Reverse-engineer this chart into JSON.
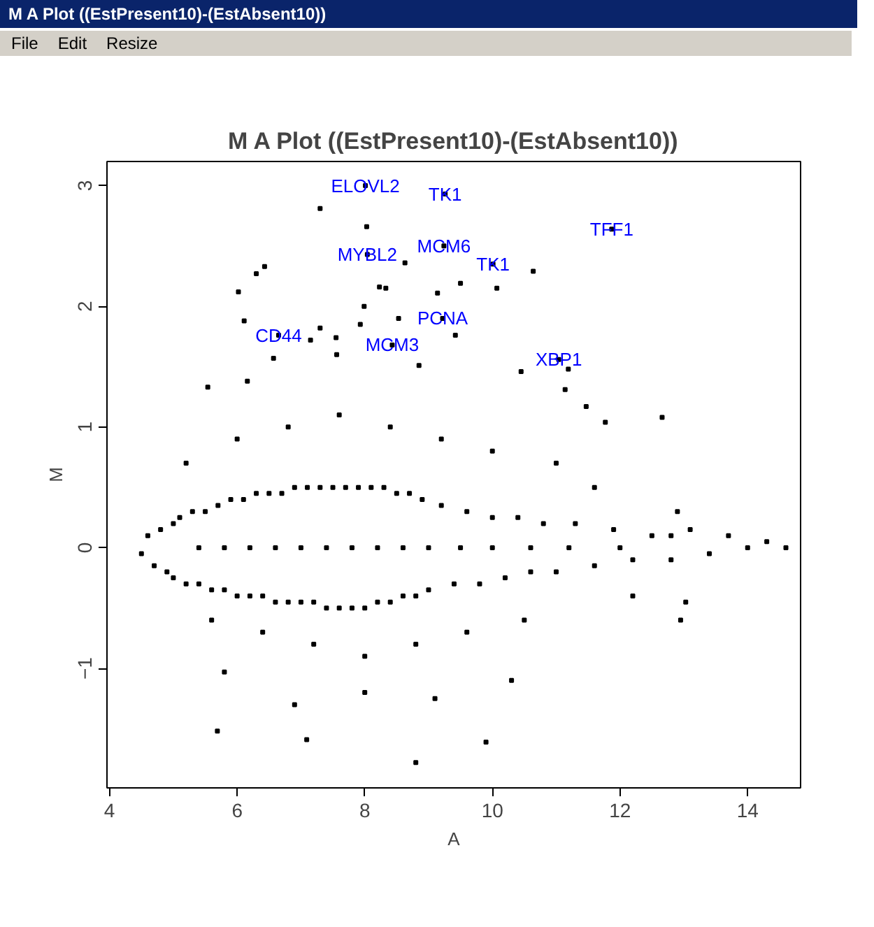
{
  "chart_data": {
    "type": "scatter",
    "title": "M A Plot ((EstPresent10)-(EstAbsent10))",
    "xlabel": "A",
    "ylabel": "M",
    "xlim": [
      3.96,
      14.83
    ],
    "ylim": [
      -1.99,
      3.2
    ],
    "xticks": [
      4,
      6,
      8,
      10,
      12,
      14
    ],
    "yticks": [
      -1,
      0,
      1,
      2,
      3
    ],
    "grid": false,
    "marker": "square",
    "series": [
      {
        "color": "#000000",
        "x": [
          4.5,
          4.6,
          4.7,
          4.8,
          4.9,
          5.0,
          5.0,
          5.1,
          5.2,
          5.3,
          5.4,
          5.5,
          5.6,
          5.7,
          5.8,
          5.9,
          6.0,
          6.1,
          6.2,
          6.3,
          6.4,
          6.5,
          6.6,
          6.7,
          6.8,
          6.9,
          7.0,
          7.1,
          7.2,
          7.3,
          7.4,
          7.5,
          7.6,
          7.7,
          7.8,
          7.9,
          8.0,
          8.1,
          8.2,
          8.3,
          8.4,
          8.5,
          8.6,
          8.7,
          8.8,
          8.9,
          9.0,
          9.2,
          9.4,
          9.6,
          9.8,
          10.0,
          10.2,
          10.4,
          10.6,
          10.8,
          11.0,
          11.3,
          11.6,
          11.9,
          12.2,
          12.5,
          12.8,
          13.1,
          13.4,
          13.7,
          14.0,
          14.3,
          14.6,
          5.2,
          5.6,
          6.0,
          6.4,
          6.8,
          7.2,
          7.6,
          8.0,
          8.4,
          8.8,
          9.2,
          9.6,
          10.0,
          10.5,
          11.0,
          11.6,
          12.2,
          12.9,
          5.4,
          5.8,
          6.2,
          6.6,
          7.0,
          7.4,
          7.8,
          8.2,
          8.6,
          9.0,
          9.5,
          10.0,
          10.6,
          11.2,
          12.0,
          12.8,
          7.3,
          8.03,
          8.63,
          10.64,
          10.07,
          9.5,
          9.14,
          6.43,
          6.3,
          6.02,
          6.11,
          8.23,
          8.33,
          7.99,
          8.53,
          7.93,
          9.42,
          7.3,
          7.15,
          7.55,
          7.56,
          6.57,
          8.85,
          10.45,
          11.19,
          11.14,
          11.47,
          12.66,
          11.77,
          5.54,
          6.16,
          13.03,
          12.95,
          8.8,
          9.9,
          5.69,
          7.09,
          5.8,
          6.9,
          8.0,
          9.1,
          10.3,
          8.01,
          9.26,
          11.87,
          8.04,
          9.24,
          10.01,
          9.22,
          6.65,
          8.43,
          11.04
        ],
        "values": [
          -0.05,
          0.1,
          -0.15,
          0.15,
          -0.2,
          0.2,
          -0.25,
          0.25,
          -0.3,
          0.3,
          -0.3,
          0.3,
          -0.35,
          0.35,
          -0.35,
          0.4,
          -0.4,
          0.4,
          -0.4,
          0.45,
          -0.4,
          0.45,
          -0.45,
          0.45,
          -0.45,
          0.5,
          -0.45,
          0.5,
          -0.45,
          0.5,
          -0.5,
          0.5,
          -0.5,
          0.5,
          -0.5,
          0.5,
          -0.5,
          0.5,
          -0.45,
          0.5,
          -0.45,
          0.45,
          -0.4,
          0.45,
          -0.4,
          0.4,
          -0.35,
          0.35,
          -0.3,
          0.3,
          -0.3,
          0.25,
          -0.25,
          0.25,
          -0.2,
          0.2,
          -0.2,
          0.2,
          -0.15,
          0.15,
          -0.1,
          0.1,
          -0.1,
          0.15,
          -0.05,
          0.1,
          0.0,
          0.05,
          0.0,
          0.7,
          -0.6,
          0.9,
          -0.7,
          1.0,
          -0.8,
          1.1,
          -0.9,
          1.0,
          -0.8,
          0.9,
          -0.7,
          0.8,
          -0.6,
          0.7,
          0.5,
          -0.4,
          0.3,
          0.0,
          0.0,
          0.0,
          0.0,
          0.0,
          0.0,
          0.0,
          0.0,
          0.0,
          0.0,
          0.0,
          0.0,
          0.0,
          0.0,
          0.0,
          0.1,
          2.81,
          2.66,
          2.36,
          2.29,
          2.15,
          2.19,
          2.11,
          2.33,
          2.27,
          2.12,
          1.88,
          2.16,
          2.15,
          2.0,
          1.9,
          1.85,
          1.76,
          1.82,
          1.72,
          1.74,
          1.6,
          1.57,
          1.51,
          1.46,
          1.48,
          1.31,
          1.17,
          1.08,
          1.04,
          1.33,
          1.38,
          -0.45,
          -0.6,
          -1.78,
          -1.61,
          -1.52,
          -1.59,
          -1.03,
          -1.3,
          -1.2,
          -1.25,
          -1.1,
          3.0,
          2.93,
          2.64,
          2.43,
          2.5,
          2.35,
          1.9,
          1.76,
          1.68,
          1.56
        ]
      }
    ],
    "annotations": [
      "M A Plot ((EstPresent10)-(EstAbsent10))",
      "File",
      "Edit",
      "Resize",
      {
        "text": "ELOVL2",
        "x": 8.01,
        "y": 3.0
      },
      {
        "text": "TK1",
        "x": 9.26,
        "y": 2.93
      },
      {
        "text": "TFF1",
        "x": 11.87,
        "y": 2.64
      },
      {
        "text": "MYBL2",
        "x": 8.04,
        "y": 2.43
      },
      {
        "text": "MCM6",
        "x": 9.24,
        "y": 2.5
      },
      {
        "text": "TK1",
        "x": 10.01,
        "y": 2.35
      },
      {
        "text": "PCNA",
        "x": 9.22,
        "y": 1.9
      },
      {
        "text": "CD44",
        "x": 6.65,
        "y": 1.76
      },
      {
        "text": "MCM3",
        "x": 8.43,
        "y": 1.68
      },
      {
        "text": "XBP1",
        "x": 11.04,
        "y": 1.56
      }
    ]
  }
}
